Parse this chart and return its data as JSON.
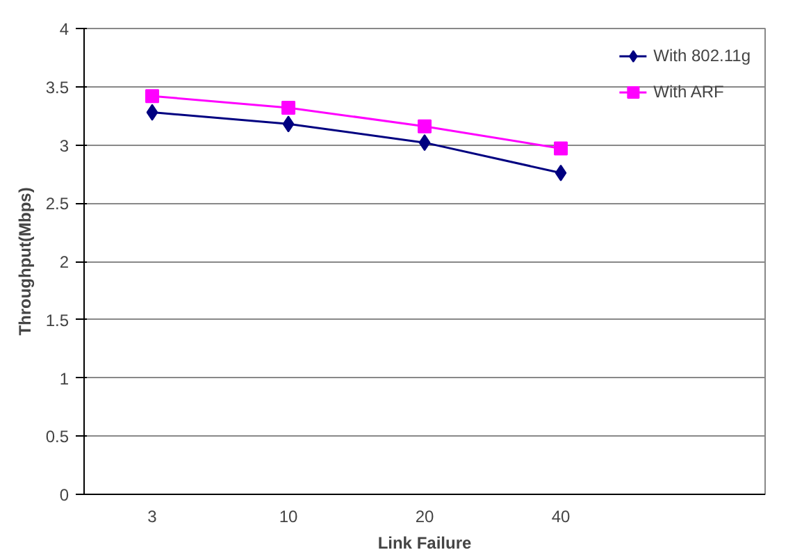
{
  "chart_data": {
    "type": "line",
    "xlabel": "Link Failure",
    "ylabel": "Throughput(Mbps)",
    "categories": [
      "3",
      "10",
      "20",
      "40",
      null
    ],
    "series": [
      {
        "name": "With 802.11g",
        "color": "#000080",
        "marker": "diamond",
        "values": [
          3.28,
          3.18,
          3.02,
          2.76,
          null
        ]
      },
      {
        "name": "With ARF",
        "color": "#ff00ff",
        "marker": "square",
        "values": [
          3.42,
          3.32,
          3.16,
          2.97,
          null
        ]
      }
    ],
    "ylim": [
      0,
      4
    ],
    "yticks": [
      0,
      0.5,
      1,
      1.5,
      2,
      2.5,
      3,
      3.5,
      4
    ],
    "grid": "y",
    "legend": "top right"
  }
}
